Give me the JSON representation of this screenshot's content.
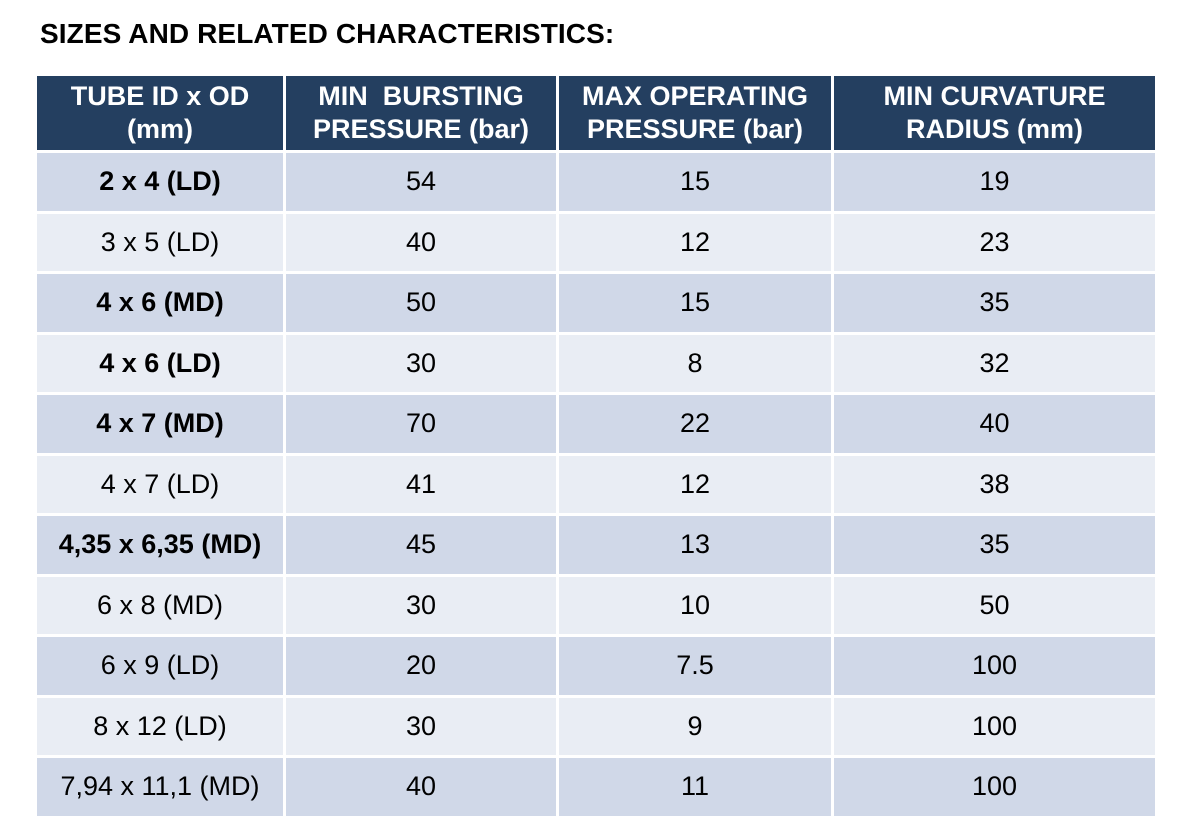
{
  "title": "SIZES AND RELATED CHARACTERISTICS:",
  "columns": [
    {
      "line1": "TUBE ID x OD",
      "line2": "(mm)"
    },
    {
      "line1": "MIN  BURSTING",
      "line2": "PRESSURE (bar)"
    },
    {
      "line1": "MAX OPERATING",
      "line2": "PRESSURE (bar)"
    },
    {
      "line1": "MIN CURVATURE",
      "line2": "RADIUS (mm)"
    }
  ],
  "rows": [
    {
      "size": "2 x 4 (LD)",
      "bold": true,
      "bursting": "54",
      "operating": "15",
      "radius": "19"
    },
    {
      "size": "3 x 5 (LD)",
      "bold": false,
      "bursting": "40",
      "operating": "12",
      "radius": "23"
    },
    {
      "size": "4 x 6 (MD)",
      "bold": true,
      "bursting": "50",
      "operating": "15",
      "radius": "35"
    },
    {
      "size": "4 x 6 (LD)",
      "bold": true,
      "bursting": "30",
      "operating": "8",
      "radius": "32"
    },
    {
      "size": "4 x 7 (MD)",
      "bold": true,
      "bursting": "70",
      "operating": "22",
      "radius": "40"
    },
    {
      "size": "4 x 7 (LD)",
      "bold": false,
      "bursting": "41",
      "operating": "12",
      "radius": "38"
    },
    {
      "size": "4,35 x 6,35 (MD)",
      "bold": true,
      "bursting": "45",
      "operating": "13",
      "radius": "35"
    },
    {
      "size": "6 x 8 (MD)",
      "bold": false,
      "bursting": "30",
      "operating": "10",
      "radius": "50"
    },
    {
      "size": "6 x 9 (LD)",
      "bold": false,
      "bursting": "20",
      "operating": "7.5",
      "radius": "100"
    },
    {
      "size": "8 x 12 (LD)",
      "bold": false,
      "bursting": "30",
      "operating": "9",
      "radius": "100"
    },
    {
      "size": "7,94 x 11,1 (MD)",
      "bold": false,
      "bursting": "40",
      "operating": "11",
      "radius": "100"
    }
  ],
  "colors": {
    "header_bg": "#243f60",
    "row_dark": "#d0d8e8",
    "row_light": "#e9edf4"
  }
}
